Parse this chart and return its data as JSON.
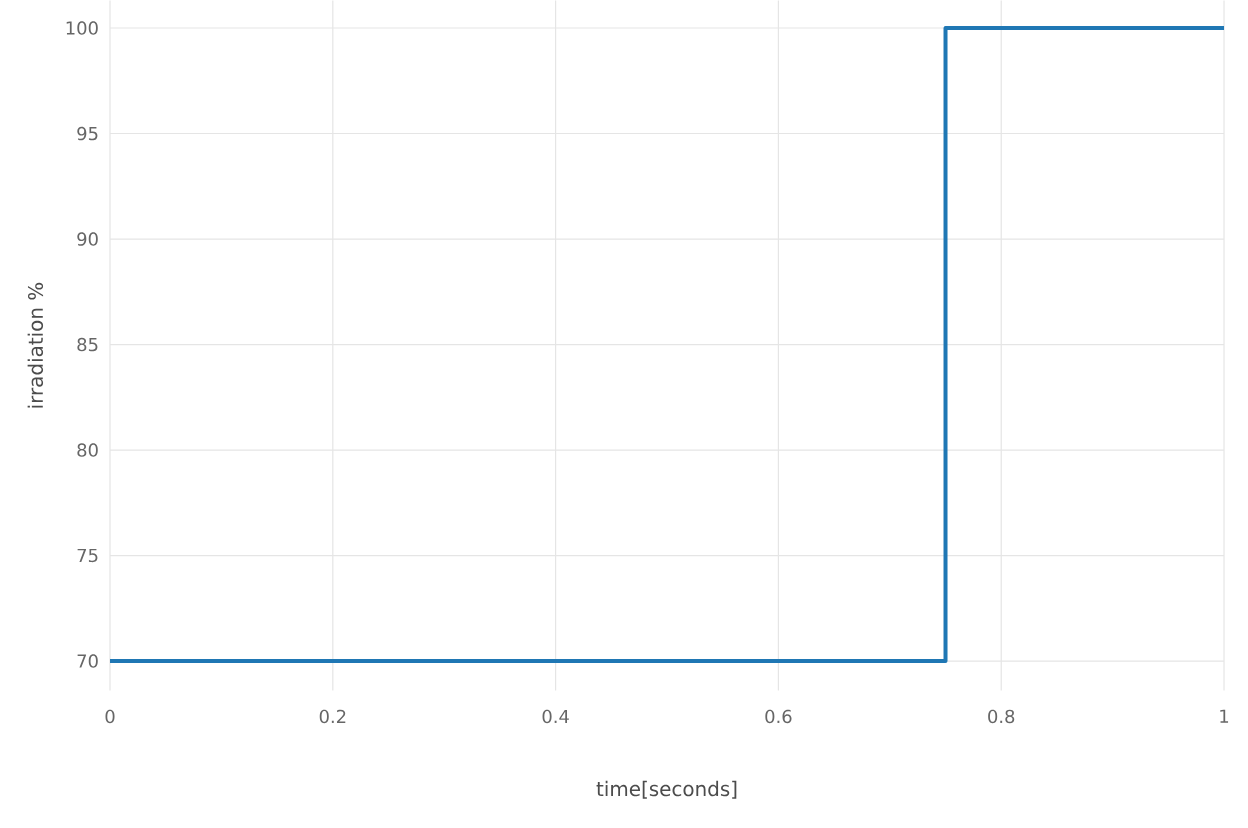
{
  "chart_data": {
    "type": "step",
    "xlabel": "time[seconds]",
    "ylabel": "irradiation %",
    "x": [
      0,
      0.75,
      1
    ],
    "series": [
      {
        "color": "#1f77b4",
        "values": [
          70,
          100,
          100
        ]
      }
    ],
    "xlim": [
      0,
      1
    ],
    "xticks": [
      0,
      0.2,
      0.4,
      0.6,
      0.8,
      1
    ],
    "ylim": [
      68.6,
      101.3
    ],
    "yticks": [
      70,
      75,
      80,
      85,
      90,
      95,
      100
    ],
    "grid": true,
    "marker": "none",
    "line_style": "solid"
  }
}
